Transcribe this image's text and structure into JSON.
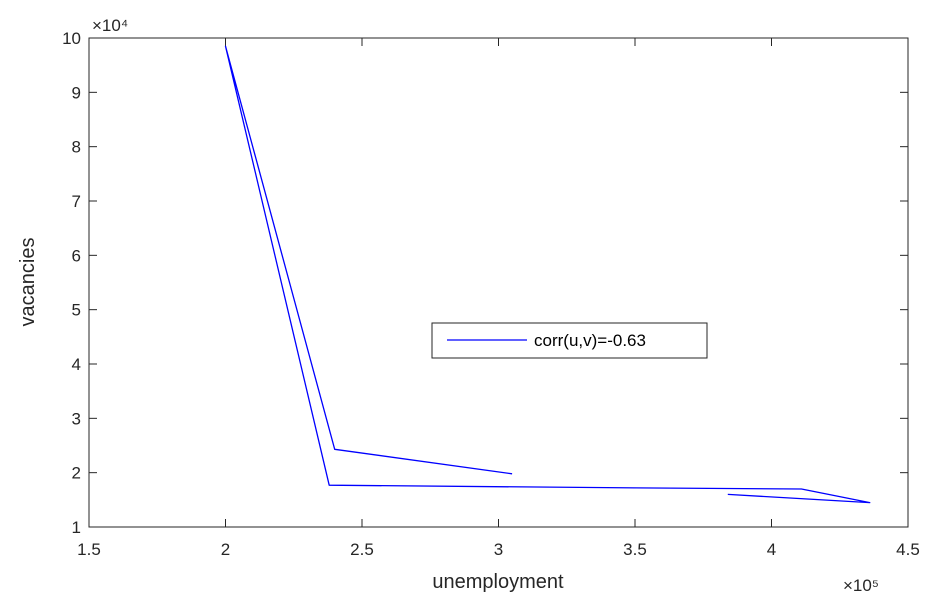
{
  "chart_data": {
    "type": "line",
    "title": "",
    "xlabel": "unemployment",
    "ylabel": "vacancies",
    "x_exponent_label": "×10⁵",
    "y_exponent_label": "×10⁴",
    "xlim": [
      1.5,
      4.5
    ],
    "ylim": [
      1,
      10
    ],
    "xticks": [
      1.5,
      2,
      2.5,
      3,
      3.5,
      4,
      4.5
    ],
    "xtick_labels": [
      "1.5",
      "2",
      "2.5",
      "3",
      "3.5",
      "4",
      "4.5"
    ],
    "yticks": [
      1,
      2,
      3,
      4,
      5,
      6,
      7,
      8,
      9,
      10
    ],
    "ytick_labels": [
      "1",
      "2",
      "3",
      "4",
      "5",
      "6",
      "7",
      "8",
      "9",
      "10"
    ],
    "grid": false,
    "legend_position": "center-right",
    "series": [
      {
        "name": "corr(u,v)=-0.63",
        "color": "#0000ff",
        "x": [
          3.84,
          4.36,
          4.11,
          3.5,
          2.38,
          2.0,
          2.4,
          3.05
        ],
        "y": [
          1.6,
          1.45,
          1.7,
          1.72,
          1.77,
          9.85,
          2.43,
          1.98
        ]
      }
    ]
  }
}
